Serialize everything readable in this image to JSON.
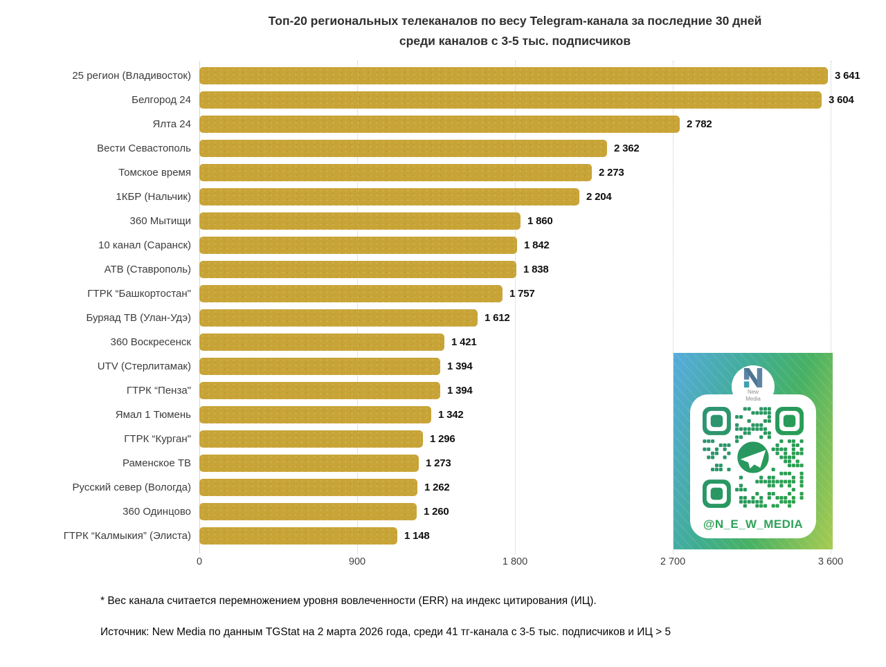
{
  "chart_data": {
    "type": "bar",
    "orientation": "horizontal",
    "title_lines": [
      "Топ-20 региональных телеканалов по весу Telegram-канала за последние 30 дней",
      "среди каналов с 3-5 тыс. подписчиков"
    ],
    "categories": [
      "25 регион (Владивосток)",
      "Белгород 24",
      "Ялта 24",
      "Вести Севастополь",
      "Томское время",
      "1КБР (Нальчик)",
      "360 Мытищи",
      "10 канал (Саранск)",
      "АТВ (Ставрополь)",
      "ГТРК “Башкортостан\"",
      "Буряад ТВ (Улан-Удэ)",
      "360 Воскресенск",
      "UTV (Стерлитамак)",
      "ГТРК “Пенза\"",
      "Ямал 1 Тюмень",
      "ГТРК “Курган\"",
      "Раменское ТВ",
      "Русский север (Вологда)",
      "360 Одинцово",
      "ГТРК “Калмыкия” (Элиста)"
    ],
    "values": [
      3641,
      3604,
      2782,
      2362,
      2273,
      2204,
      1860,
      1842,
      1838,
      1757,
      1612,
      1421,
      1394,
      1394,
      1342,
      1296,
      1273,
      1262,
      1260,
      1148
    ],
    "value_labels": [
      "3 641",
      "3 604",
      "2 782",
      "2 362",
      "2 273",
      "2 204",
      "1 860",
      "1 842",
      "1 838",
      "1 757",
      "1 612",
      "1 421",
      "1 394",
      "1 394",
      "1 342",
      "1 296",
      "1 273",
      "1 262",
      "1 260",
      "1 148"
    ],
    "x_ticks": {
      "values": [
        0,
        900,
        1800,
        2700,
        3600
      ],
      "labels": [
        "0",
        "900",
        "1 800",
        "2 700",
        "3 600"
      ]
    },
    "xlim": [
      0,
      3600
    ],
    "grid": "vertical-dotted",
    "legend": "none",
    "bar_color": "#c8a437"
  },
  "footnotes": {
    "definition": "* Вес канала считается перемножением уровня вовлеченности (ERR) на индекс цитирования (ИЦ).",
    "source": "Источник: New Media по данным TGStat на 2 марта 2026 года, среди 41 тг-канала с 3-5 тыс. подписчиков и ИЦ > 5"
  },
  "qr_card": {
    "handle": "@N_E_W_MEDIA",
    "logo_text_lines": [
      "New",
      "Media"
    ],
    "handle_color": "#2ea258",
    "qr_green_stops": [
      "#2e9472",
      "#27995c",
      "#2ba24b"
    ],
    "card_gradient_stops": [
      "#56abdc",
      "#40ad92",
      "#47b163",
      "#a8cb51"
    ],
    "center_icon": "telegram-paper-plane-icon"
  }
}
